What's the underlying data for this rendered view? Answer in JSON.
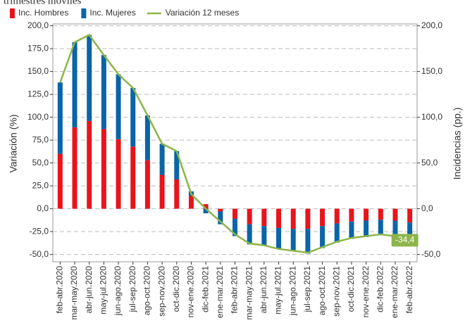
{
  "chart_data": {
    "type": "bar",
    "title": "trimestres móviles",
    "y_label": "Variación (%)",
    "y2_label": "Incidencias (pp.)",
    "categories": [
      "feb-abr.2020",
      "mar-may.2020",
      "abr-jun.2020",
      "may-jul.2020",
      "jun-ago.2020",
      "jul-sep.2020",
      "ago-oct.2020",
      "sep-nov.2020",
      "oct-dic.2020",
      "nov-ene.2020",
      "dic-feb.2021",
      "ene-mar.2021",
      "feb-abr.2021",
      "mar-may.2021",
      "abr-jun.2021",
      "may-jul.2021",
      "jun-ago.2021",
      "jul-sep.2021",
      "ago-oct.2021",
      "sep-nov.2021",
      "oct-dic.2021",
      "nov-ene.2022",
      "dic-feb.2022",
      "ene-mar.2022",
      "feb-abr.2022"
    ],
    "series": [
      {
        "name": "Inc. Hombres",
        "type": "bar",
        "axis": "y2",
        "color": "#e8141c",
        "values": [
          60,
          89,
          96,
          87,
          76,
          68,
          53,
          37,
          32,
          14,
          5,
          -3,
          -11,
          -17,
          -19,
          -21,
          -22,
          -22,
          -19,
          -16,
          -14,
          -13,
          -12,
          -13,
          -15
        ]
      },
      {
        "name": "Inc. Mujeres",
        "type": "bar",
        "axis": "y2",
        "color": "#0a64a8",
        "values": [
          78,
          93,
          94,
          81,
          71,
          64,
          49,
          34,
          31,
          5,
          -5,
          -14,
          -19,
          -22,
          -21,
          -23,
          -24,
          -27,
          -24,
          -21,
          -19,
          -18,
          -17,
          -17,
          -19
        ]
      },
      {
        "name": "Variación 12 meses",
        "type": "line",
        "color": "#8db54a",
        "values": [
          138,
          182,
          190,
          168,
          147,
          132,
          102,
          71,
          63,
          16,
          0,
          -14,
          -28,
          -38,
          -40,
          -44,
          -46,
          -48,
          -42,
          -36,
          -32,
          -30,
          -28,
          -30,
          -34.4
        ],
        "value_labels": [
          null,
          null,
          null,
          null,
          null,
          null,
          null,
          null,
          null,
          null,
          null,
          null,
          null,
          null,
          null,
          null,
          null,
          null,
          null,
          null,
          null,
          null,
          null,
          null,
          "-34,4"
        ]
      }
    ],
    "ylim": [
      -58,
      202
    ],
    "yticks": [
      {
        "value": -50,
        "label": "-50,0"
      },
      {
        "value": -25,
        "label": "-25,0"
      },
      {
        "value": 0,
        "label": "0,0"
      },
      {
        "value": 25,
        "label": "25,0"
      },
      {
        "value": 50,
        "label": "50,0"
      },
      {
        "value": 75,
        "label": "75,0"
      },
      {
        "value": 100,
        "label": "100,0"
      },
      {
        "value": 125,
        "label": "125,0"
      },
      {
        "value": 150,
        "label": "150,0"
      },
      {
        "value": 175,
        "label": "175,0"
      },
      {
        "value": 200,
        "label": "200,0"
      }
    ],
    "y2lim": [
      -58,
      202
    ],
    "y2ticks": [
      {
        "value": -50,
        "label": "-50,0"
      },
      {
        "value": 0,
        "label": "0,0"
      },
      {
        "value": 50,
        "label": "50,0"
      },
      {
        "value": 100,
        "label": "100,0"
      },
      {
        "value": 150,
        "label": "150,0"
      },
      {
        "value": 200,
        "label": "200,0"
      }
    ],
    "grid": true
  }
}
